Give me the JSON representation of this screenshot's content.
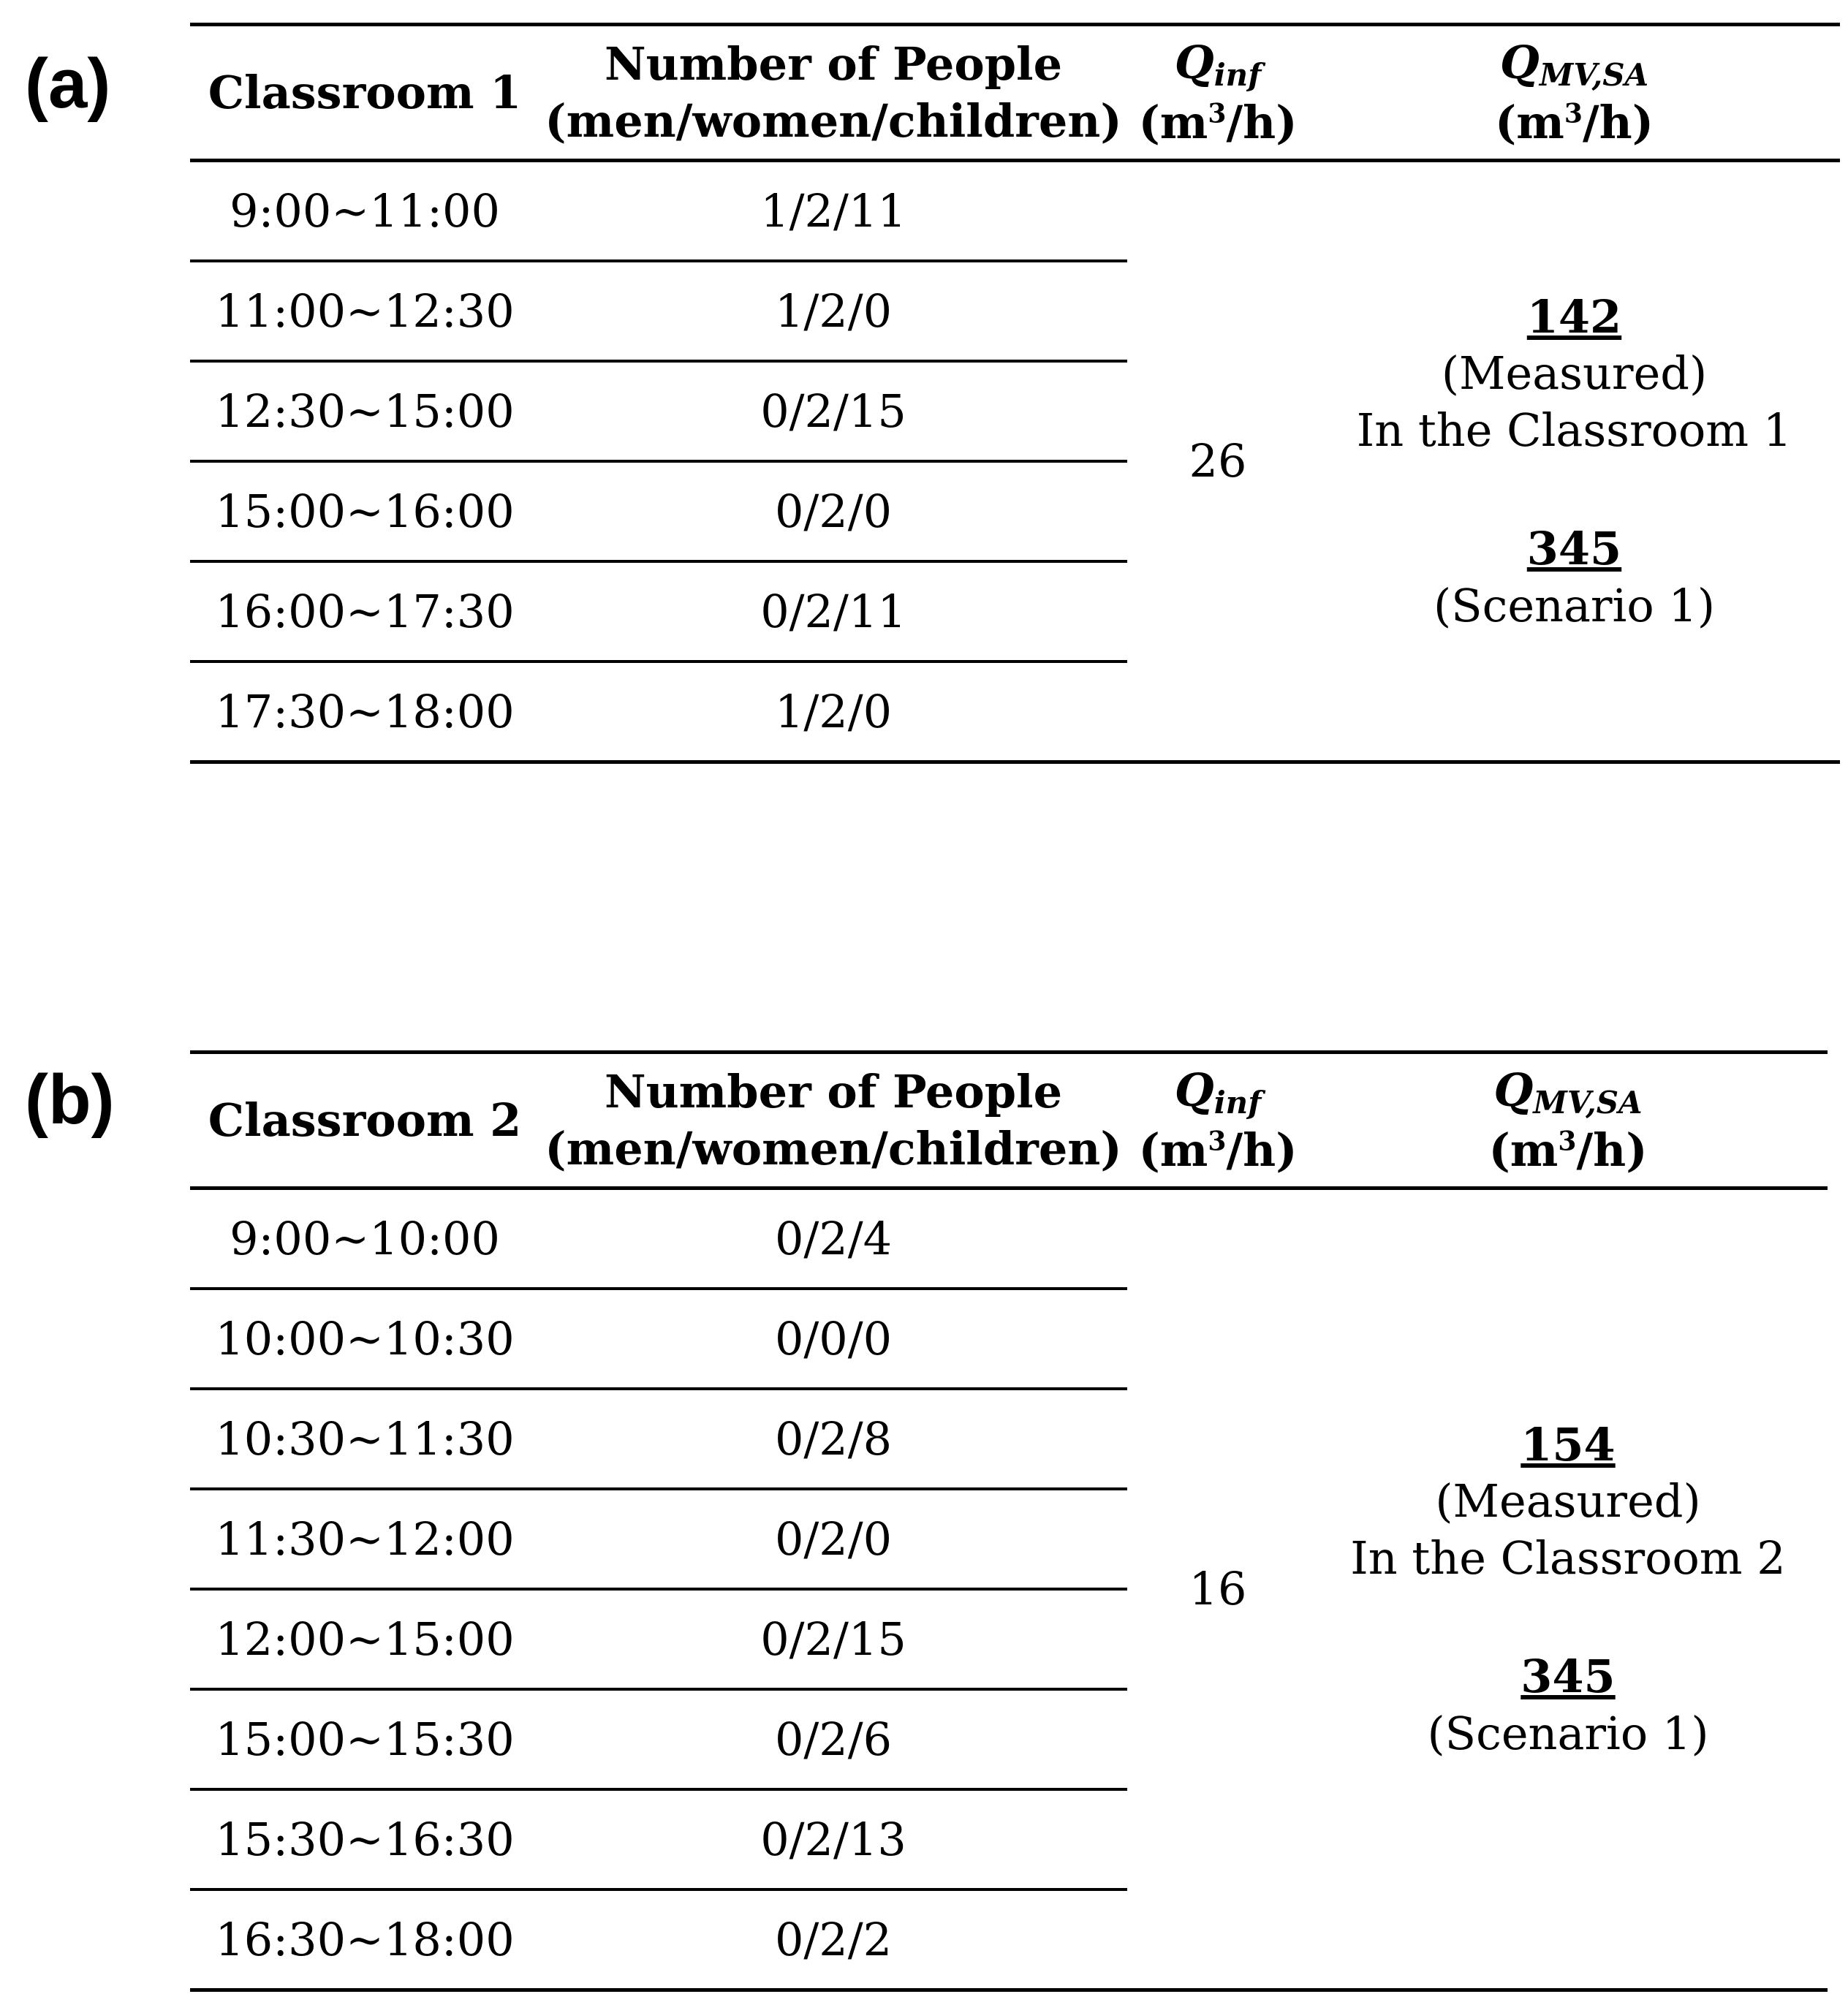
{
  "panels": [
    {
      "label": "(a)",
      "headers": {
        "col1": "Classroom 1",
        "col2_line1": "Number of People",
        "col2_line2": "(men/women/children)",
        "q_inf": "Q",
        "q_inf_sub": "inf",
        "q_mv": "Q",
        "q_mv_sub": "MV,SA",
        "unit_pre": "(m",
        "unit_sup": "3",
        "unit_post": "/h)"
      },
      "rows": [
        {
          "time": "9:00~11:00",
          "people": "1/2/11"
        },
        {
          "time": "11:00~12:30",
          "people": "1/2/0"
        },
        {
          "time": "12:30~15:00",
          "people": "0/2/15"
        },
        {
          "time": "15:00~16:00",
          "people": "0/2/0"
        },
        {
          "time": "16:00~17:30",
          "people": "0/2/11"
        },
        {
          "time": "17:30~18:00",
          "people": "1/2/0"
        }
      ],
      "q_inf_value": "26",
      "measured_value": "142",
      "measured_label": "(Measured)",
      "measured_location": "In the Classroom 1",
      "scenario_value": "345",
      "scenario_label": "(Scenario 1)"
    },
    {
      "label": "(b)",
      "headers": {
        "col1": "Classroom 2",
        "col2_line1": "Number of People",
        "col2_line2": "(men/women/children)",
        "q_inf": "Q",
        "q_inf_sub": "inf",
        "q_mv": "Q",
        "q_mv_sub": "MV,SA",
        "unit_pre": "(m",
        "unit_sup": "3",
        "unit_post": "/h)"
      },
      "rows": [
        {
          "time": "9:00~10:00",
          "people": "0/2/4"
        },
        {
          "time": "10:00~10:30",
          "people": "0/0/0"
        },
        {
          "time": "10:30~11:30",
          "people": "0/2/8"
        },
        {
          "time": "11:30~12:00",
          "people": "0/2/0"
        },
        {
          "time": "12:00~15:00",
          "people": "0/2/15"
        },
        {
          "time": "15:00~15:30",
          "people": "0/2/6"
        },
        {
          "time": "15:30~16:30",
          "people": "0/2/13"
        },
        {
          "time": "16:30~18:00",
          "people": "0/2/2"
        }
      ],
      "q_inf_value": "16",
      "measured_value": "154",
      "measured_label": "(Measured)",
      "measured_location": "In the Classroom 2",
      "scenario_value": "345",
      "scenario_label": "(Scenario 1)"
    }
  ]
}
